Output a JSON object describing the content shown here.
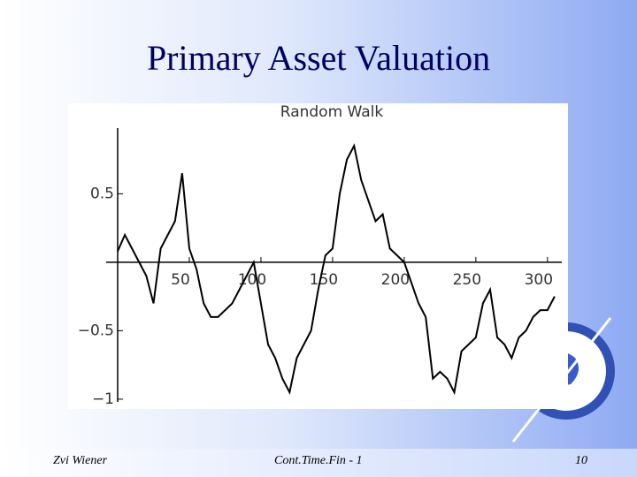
{
  "slide": {
    "title": "Primary Asset Valuation",
    "footer_left": "Zvi Wiener",
    "footer_center": "Cont.Time.Fin - 1",
    "page_number": "10"
  },
  "chart_data": {
    "type": "line",
    "title": "Random  Walk",
    "color": "#000000",
    "x": [
      0,
      5,
      10,
      15,
      20,
      25,
      30,
      35,
      40,
      45,
      50,
      55,
      60,
      65,
      70,
      75,
      80,
      85,
      90,
      95,
      100,
      105,
      110,
      115,
      120,
      125,
      130,
      135,
      140,
      145,
      150,
      155,
      160,
      165,
      170,
      175,
      180,
      185,
      190,
      195,
      200,
      205,
      210,
      215,
      220,
      225,
      230,
      235,
      240,
      245,
      250,
      255,
      260,
      265,
      270,
      275,
      280,
      285,
      290,
      295,
      300,
      305
    ],
    "values": [
      0.08,
      0.2,
      0.1,
      0.0,
      -0.1,
      -0.3,
      0.1,
      0.2,
      0.3,
      0.65,
      0.1,
      -0.05,
      -0.3,
      -0.4,
      -0.4,
      -0.35,
      -0.3,
      -0.2,
      -0.1,
      0.0,
      -0.3,
      -0.6,
      -0.7,
      -0.85,
      -0.95,
      -0.7,
      -0.6,
      -0.5,
      -0.2,
      0.05,
      0.1,
      0.5,
      0.75,
      0.85,
      0.6,
      0.45,
      0.3,
      0.35,
      0.1,
      0.05,
      0.0,
      -0.15,
      -0.3,
      -0.4,
      -0.85,
      -0.8,
      -0.85,
      -0.95,
      -0.65,
      -0.6,
      -0.55,
      -0.3,
      -0.2,
      -0.55,
      -0.6,
      -0.7,
      -0.55,
      -0.5,
      -0.4,
      -0.35,
      -0.35,
      -0.25
    ],
    "xlim": [
      0,
      310
    ],
    "ylim": [
      -1.02,
      0.98
    ],
    "xticks": [
      50,
      100,
      150,
      200,
      250,
      300
    ],
    "yticks": [
      0.5,
      {
        "value": -0.5,
        "label": "−0.5"
      },
      {
        "value": -1,
        "label": "−1"
      }
    ]
  }
}
